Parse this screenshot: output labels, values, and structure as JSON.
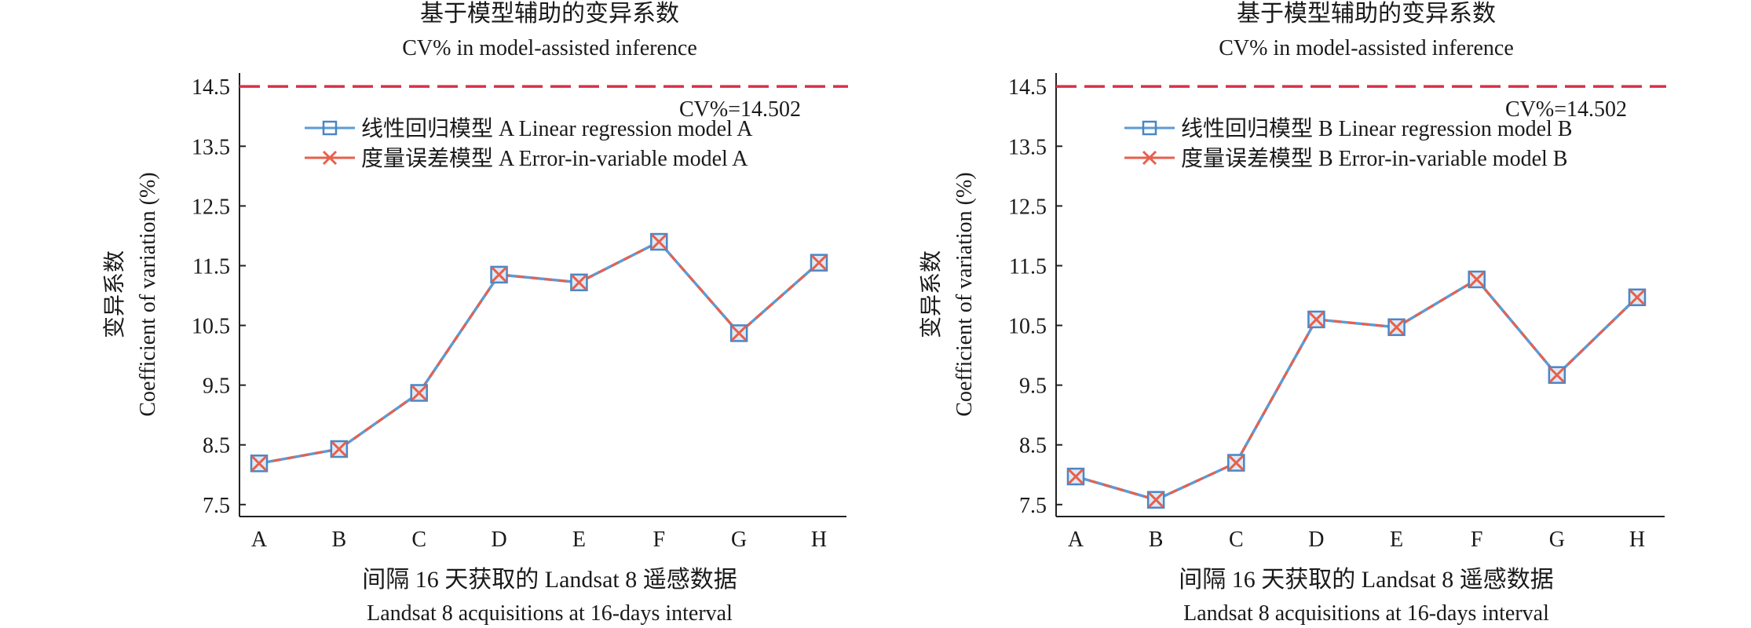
{
  "colors": {
    "linear": "#5b9bd5",
    "linear_marker": "#4a86c5",
    "error": "#e8604c",
    "reference": "#d9304a",
    "axis": "#222222"
  },
  "chart_data": [
    {
      "type": "line",
      "title": "基于模型辅助的变异系数",
      "subtitle": "CV% in model-assisted inference",
      "xlabel": "间隔 16 天获取的 Landsat 8 遥感数据",
      "xlabel_en": "Landsat 8 acquisitions at 16-days interval",
      "ylabel": "变异系数",
      "ylabel_en": "Coefficient of variation (%)",
      "categories": [
        "A",
        "B",
        "C",
        "D",
        "E",
        "F",
        "G",
        "H"
      ],
      "ylim": [
        7.3,
        14.7
      ],
      "yticks": [
        "7.5",
        "8.5",
        "9.5",
        "10.5",
        "11.5",
        "12.5",
        "13.5",
        "14.5"
      ],
      "grid": false,
      "legend_position": "top-right",
      "reference_line": {
        "value": 14.502,
        "label": "CV%=14.502"
      },
      "series": [
        {
          "name": "线性回归模型 A Linear regression model A",
          "marker": "square",
          "values": [
            8.19,
            8.43,
            9.37,
            11.35,
            11.22,
            11.9,
            10.37,
            11.55
          ]
        },
        {
          "name": "度量误差模型 A Error-in-variable model A",
          "marker": "x",
          "values": [
            8.19,
            8.43,
            9.37,
            11.35,
            11.22,
            11.9,
            10.37,
            11.55
          ]
        }
      ]
    },
    {
      "type": "line",
      "title": "基于模型辅助的变异系数",
      "subtitle": "CV% in model-assisted inference",
      "xlabel": "间隔 16 天获取的 Landsat 8 遥感数据",
      "xlabel_en": "Landsat 8 acquisitions at 16-days interval",
      "ylabel": "变异系数",
      "ylabel_en": "Coefficient of variation (%)",
      "categories": [
        "A",
        "B",
        "C",
        "D",
        "E",
        "F",
        "G",
        "H"
      ],
      "ylim": [
        7.3,
        14.7
      ],
      "yticks": [
        "7.5",
        "8.5",
        "9.5",
        "10.5",
        "11.5",
        "12.5",
        "13.5",
        "14.5"
      ],
      "grid": false,
      "legend_position": "top-right",
      "reference_line": {
        "value": 14.502,
        "label": "CV%=14.502"
      },
      "series": [
        {
          "name": "线性回归模型 B Linear regression model B",
          "marker": "square",
          "values": [
            7.97,
            7.58,
            8.2,
            10.6,
            10.47,
            11.27,
            9.67,
            10.97
          ]
        },
        {
          "name": "度量误差模型 B Error-in-variable model B",
          "marker": "x",
          "values": [
            7.97,
            7.58,
            8.2,
            10.6,
            10.47,
            11.27,
            9.67,
            10.97
          ]
        }
      ]
    }
  ]
}
